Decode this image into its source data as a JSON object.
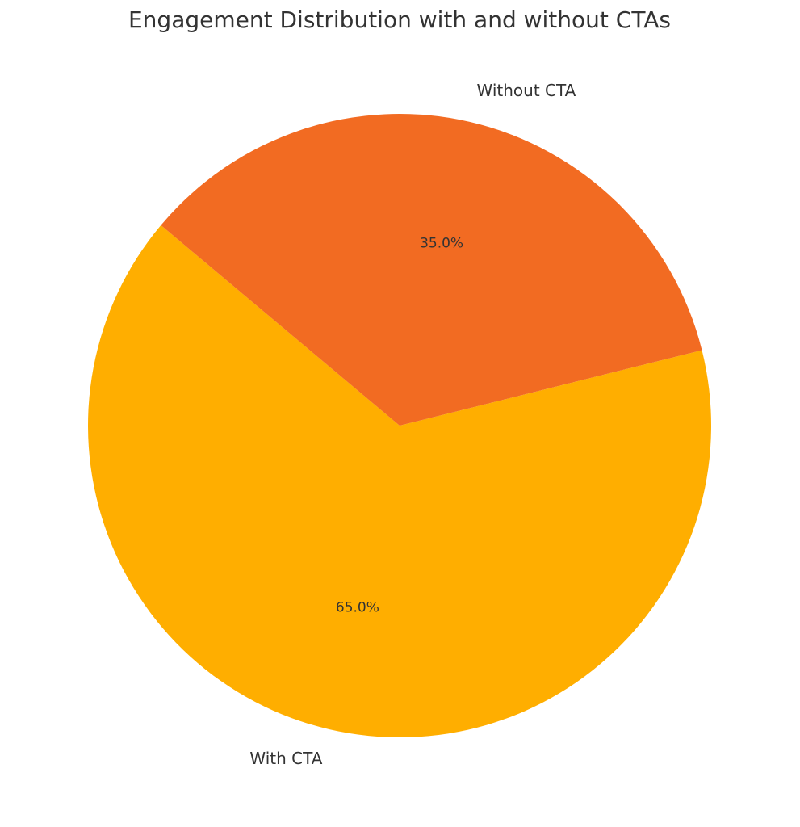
{
  "chart_data": {
    "type": "pie",
    "title": "Engagement Distribution with and without CTAs",
    "categories": [
      "With CTA",
      "Without CTA"
    ],
    "values": [
      65,
      35
    ],
    "value_labels": [
      "65.0%",
      "35.0%"
    ],
    "colors": [
      "#ffae00",
      "#f26b22"
    ]
  }
}
